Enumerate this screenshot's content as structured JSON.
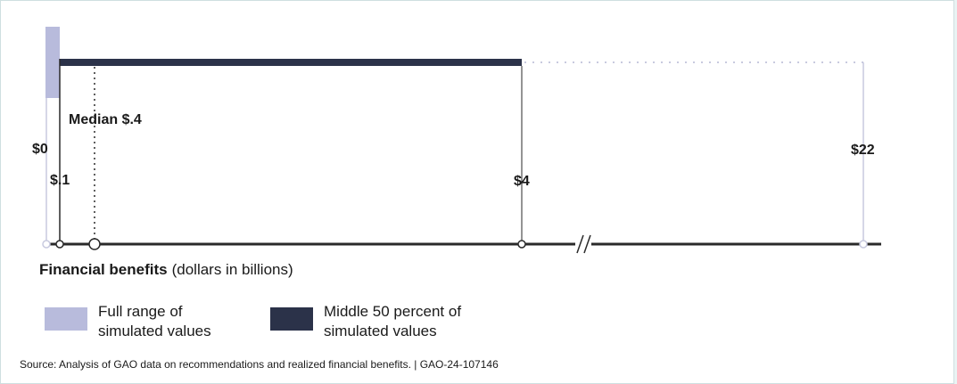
{
  "chart_data": {
    "type": "range",
    "axis_label_bold": "Financial benefits",
    "axis_label_rest": "(dollars in billions)",
    "full_range": [
      0,
      22
    ],
    "middle_50": [
      0.1,
      4
    ],
    "median": 0.4,
    "labels": {
      "zero": "$0",
      "low": "$.1",
      "median": "Median $.4",
      "high_mid": "$4",
      "max": "$22"
    },
    "axis_break": true,
    "legend": [
      {
        "label_line1": "Full range of",
        "label_line2": "simulated values",
        "color": "#b8bbdc"
      },
      {
        "label_line1": "Middle 50 percent of",
        "label_line2": "simulated values",
        "color": "#2b3249"
      }
    ],
    "colors": {
      "full_range": "#b8bbdc",
      "middle_50": "#2b3249",
      "axis": "#2a2a2a",
      "dotted": "#c8cadf"
    }
  },
  "source": "Source: Analysis of GAO data on recommendations and realized financial benefits.  |  GAO-24-107146"
}
